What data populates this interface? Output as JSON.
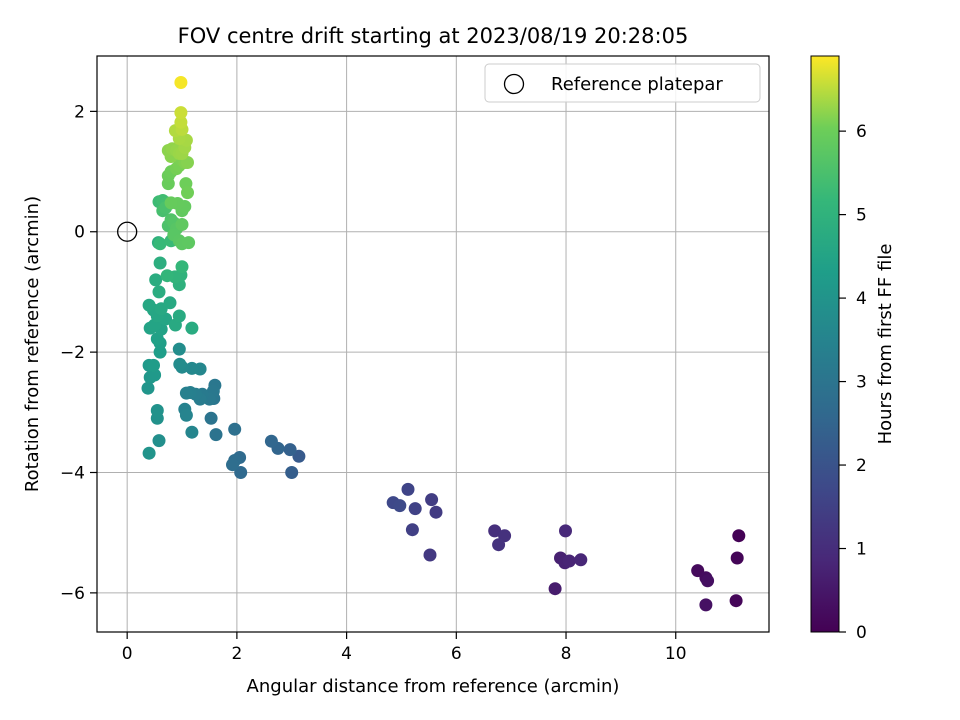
{
  "chart_data": {
    "type": "scatter",
    "title": "FOV centre drift starting at 2023/08/19 20:28:05",
    "xlabel": "Angular distance from reference (arcmin)",
    "ylabel": "Rotation from reference (arcmin)",
    "xlim": [
      -0.55,
      11.7
    ],
    "ylim": [
      -6.65,
      2.92
    ],
    "xticks": [
      0,
      2,
      4,
      6,
      8,
      10
    ],
    "yticks": [
      -6,
      -4,
      -2,
      0,
      2
    ],
    "grid": true,
    "legend": {
      "placement": "top-right",
      "label": "Reference platepar"
    },
    "reference_point": {
      "x": 0,
      "y": 0
    },
    "colorbar": {
      "label": "Hours from first FF file",
      "colormap": "viridis",
      "range": [
        0,
        6.9
      ],
      "ticks": [
        0,
        1,
        2,
        3,
        4,
        5,
        6
      ]
    },
    "series": [
      {
        "points": [
          {
            "x": 11.15,
            "y": -5.05,
            "c": 0.03
          },
          {
            "x": 11.12,
            "y": -5.42,
            "c": 0.08
          },
          {
            "x": 11.1,
            "y": -6.13,
            "c": 0.12
          },
          {
            "x": 10.4,
            "y": -5.63,
            "c": 0.2
          },
          {
            "x": 10.55,
            "y": -5.75,
            "c": 0.25
          },
          {
            "x": 10.58,
            "y": -5.8,
            "c": 0.3
          },
          {
            "x": 10.55,
            "y": -6.2,
            "c": 0.35
          },
          {
            "x": 7.8,
            "y": -5.93,
            "c": 0.6
          },
          {
            "x": 7.9,
            "y": -5.42,
            "c": 0.7
          },
          {
            "x": 7.98,
            "y": -5.5,
            "c": 0.75
          },
          {
            "x": 8.06,
            "y": -5.47,
            "c": 0.8
          },
          {
            "x": 8.27,
            "y": -5.45,
            "c": 0.85
          },
          {
            "x": 7.99,
            "y": -4.97,
            "c": 0.9
          },
          {
            "x": 6.7,
            "y": -4.97,
            "c": 1.05
          },
          {
            "x": 6.88,
            "y": -5.05,
            "c": 1.1
          },
          {
            "x": 6.77,
            "y": -5.2,
            "c": 1.15
          },
          {
            "x": 5.52,
            "y": -5.37,
            "c": 1.3
          },
          {
            "x": 5.63,
            "y": -4.66,
            "c": 1.35
          },
          {
            "x": 5.55,
            "y": -4.45,
            "c": 1.4
          },
          {
            "x": 5.2,
            "y": -4.95,
            "c": 1.5
          },
          {
            "x": 5.25,
            "y": -4.6,
            "c": 1.55
          },
          {
            "x": 5.12,
            "y": -4.28,
            "c": 1.6
          },
          {
            "x": 4.85,
            "y": -4.5,
            "c": 1.7
          },
          {
            "x": 4.97,
            "y": -4.55,
            "c": 1.75
          },
          {
            "x": 3.13,
            "y": -3.73,
            "c": 2.2
          },
          {
            "x": 3.0,
            "y": -4.0,
            "c": 2.3
          },
          {
            "x": 2.97,
            "y": -3.62,
            "c": 2.4
          },
          {
            "x": 2.75,
            "y": -3.6,
            "c": 2.5
          },
          {
            "x": 2.63,
            "y": -3.48,
            "c": 2.55
          },
          {
            "x": 2.07,
            "y": -4.0,
            "c": 2.65
          },
          {
            "x": 2.05,
            "y": -3.75,
            "c": 2.7
          },
          {
            "x": 1.96,
            "y": -3.8,
            "c": 2.75
          },
          {
            "x": 1.92,
            "y": -3.87,
            "c": 2.78
          },
          {
            "x": 1.96,
            "y": -3.28,
            "c": 2.85
          },
          {
            "x": 1.62,
            "y": -3.37,
            "c": 2.95
          },
          {
            "x": 1.53,
            "y": -3.1,
            "c": 3.0
          },
          {
            "x": 1.58,
            "y": -2.77,
            "c": 3.05
          },
          {
            "x": 1.6,
            "y": -2.55,
            "c": 3.1
          },
          {
            "x": 1.57,
            "y": -2.65,
            "c": 3.12
          },
          {
            "x": 1.5,
            "y": -2.78,
            "c": 3.15
          },
          {
            "x": 1.37,
            "y": -2.7,
            "c": 3.2
          },
          {
            "x": 1.33,
            "y": -2.78,
            "c": 3.25
          },
          {
            "x": 1.25,
            "y": -2.7,
            "c": 3.3
          },
          {
            "x": 1.15,
            "y": -2.67,
            "c": 3.35
          },
          {
            "x": 1.08,
            "y": -2.68,
            "c": 3.4
          },
          {
            "x": 1.05,
            "y": -2.95,
            "c": 3.45
          },
          {
            "x": 1.08,
            "y": -3.05,
            "c": 3.5
          },
          {
            "x": 1.18,
            "y": -3.33,
            "c": 3.55
          },
          {
            "x": 1.33,
            "y": -2.28,
            "c": 3.6
          },
          {
            "x": 1.18,
            "y": -2.27,
            "c": 3.65
          },
          {
            "x": 1.0,
            "y": -2.25,
            "c": 3.7
          },
          {
            "x": 0.96,
            "y": -2.2,
            "c": 3.75
          },
          {
            "x": 0.95,
            "y": -1.95,
            "c": 3.8
          },
          {
            "x": 0.58,
            "y": -3.47,
            "c": 3.85
          },
          {
            "x": 0.55,
            "y": -3.1,
            "c": 3.9
          },
          {
            "x": 0.55,
            "y": -2.97,
            "c": 3.95
          },
          {
            "x": 0.4,
            "y": -3.68,
            "c": 4.0
          },
          {
            "x": 0.38,
            "y": -2.6,
            "c": 4.05
          },
          {
            "x": 0.42,
            "y": -2.42,
            "c": 4.1
          },
          {
            "x": 0.5,
            "y": -2.38,
            "c": 4.15
          },
          {
            "x": 0.4,
            "y": -2.22,
            "c": 4.2
          },
          {
            "x": 0.48,
            "y": -2.22,
            "c": 4.25
          },
          {
            "x": 0.6,
            "y": -2.0,
            "c": 4.3
          },
          {
            "x": 0.6,
            "y": -1.85,
            "c": 4.35
          },
          {
            "x": 0.55,
            "y": -1.78,
            "c": 4.4
          },
          {
            "x": 0.62,
            "y": -1.62,
            "c": 4.45
          },
          {
            "x": 0.42,
            "y": -1.6,
            "c": 4.5
          },
          {
            "x": 0.5,
            "y": -1.55,
            "c": 4.52
          },
          {
            "x": 0.7,
            "y": -1.45,
            "c": 4.55
          },
          {
            "x": 0.55,
            "y": -1.4,
            "c": 4.58
          },
          {
            "x": 0.48,
            "y": -1.3,
            "c": 4.6
          },
          {
            "x": 0.4,
            "y": -1.22,
            "c": 4.62
          },
          {
            "x": 0.62,
            "y": -1.28,
            "c": 4.65
          },
          {
            "x": 0.78,
            "y": -1.18,
            "c": 4.68
          },
          {
            "x": 0.88,
            "y": -1.55,
            "c": 4.7
          },
          {
            "x": 0.95,
            "y": -1.4,
            "c": 4.72
          },
          {
            "x": 1.18,
            "y": -1.6,
            "c": 4.75
          },
          {
            "x": 0.58,
            "y": -1.0,
            "c": 4.78
          },
          {
            "x": 0.52,
            "y": -0.8,
            "c": 4.8
          },
          {
            "x": 0.6,
            "y": -0.52,
            "c": 4.85
          },
          {
            "x": 0.57,
            "y": -0.18,
            "c": 4.9
          },
          {
            "x": 0.95,
            "y": -0.88,
            "c": 4.95
          },
          {
            "x": 0.98,
            "y": -0.72,
            "c": 5.0
          },
          {
            "x": 0.87,
            "y": -0.75,
            "c": 5.05
          },
          {
            "x": 0.73,
            "y": -0.73,
            "c": 5.1
          },
          {
            "x": 1.0,
            "y": -0.58,
            "c": 5.15
          },
          {
            "x": 0.6,
            "y": -0.2,
            "c": 5.2
          },
          {
            "x": 0.8,
            "y": -0.15,
            "c": 5.25
          },
          {
            "x": 0.58,
            "y": 0.5,
            "c": 5.3
          },
          {
            "x": 0.65,
            "y": 0.52,
            "c": 5.35
          },
          {
            "x": 0.72,
            "y": 0.48,
            "c": 5.4
          },
          {
            "x": 0.65,
            "y": 0.35,
            "c": 5.45
          },
          {
            "x": 0.7,
            "y": 0.4,
            "c": 5.5
          },
          {
            "x": 0.75,
            "y": 0.1,
            "c": 5.55
          },
          {
            "x": 0.8,
            "y": 0.2,
            "c": 5.6
          },
          {
            "x": 0.85,
            "y": 0.15,
            "c": 5.65
          },
          {
            "x": 0.9,
            "y": 0.05,
            "c": 5.7
          },
          {
            "x": 0.85,
            "y": -0.05,
            "c": 5.72
          },
          {
            "x": 0.95,
            "y": -0.15,
            "c": 5.75
          },
          {
            "x": 1.0,
            "y": -0.2,
            "c": 5.78
          },
          {
            "x": 1.12,
            "y": -0.18,
            "c": 5.8
          },
          {
            "x": 1.0,
            "y": 0.12,
            "c": 5.82
          },
          {
            "x": 1.0,
            "y": 0.35,
            "c": 5.85
          },
          {
            "x": 1.05,
            "y": 0.42,
            "c": 5.88
          },
          {
            "x": 0.92,
            "y": 0.47,
            "c": 5.9
          },
          {
            "x": 0.8,
            "y": 0.48,
            "c": 5.92
          },
          {
            "x": 0.75,
            "y": 0.8,
            "c": 5.95
          },
          {
            "x": 0.75,
            "y": 0.93,
            "c": 5.98
          },
          {
            "x": 0.8,
            "y": 1.0,
            "c": 6.0
          },
          {
            "x": 1.07,
            "y": 0.8,
            "c": 6.02
          },
          {
            "x": 1.1,
            "y": 0.65,
            "c": 6.05
          },
          {
            "x": 0.9,
            "y": 1.05,
            "c": 6.08
          },
          {
            "x": 0.95,
            "y": 1.1,
            "c": 6.1
          },
          {
            "x": 0.98,
            "y": 1.2,
            "c": 6.12
          },
          {
            "x": 1.05,
            "y": 1.15,
            "c": 6.15
          },
          {
            "x": 1.1,
            "y": 1.15,
            "c": 6.18
          },
          {
            "x": 0.8,
            "y": 1.25,
            "c": 6.2
          },
          {
            "x": 0.75,
            "y": 1.35,
            "c": 6.22
          },
          {
            "x": 0.82,
            "y": 1.38,
            "c": 6.25
          },
          {
            "x": 0.9,
            "y": 1.35,
            "c": 6.28
          },
          {
            "x": 0.95,
            "y": 1.3,
            "c": 6.3
          },
          {
            "x": 1.0,
            "y": 1.3,
            "c": 6.32
          },
          {
            "x": 1.05,
            "y": 1.4,
            "c": 6.35
          },
          {
            "x": 1.08,
            "y": 1.52,
            "c": 6.38
          },
          {
            "x": 0.95,
            "y": 1.55,
            "c": 6.4
          },
          {
            "x": 0.88,
            "y": 1.68,
            "c": 6.45
          },
          {
            "x": 1.0,
            "y": 1.7,
            "c": 6.5
          },
          {
            "x": 0.98,
            "y": 1.82,
            "c": 6.55
          },
          {
            "x": 0.98,
            "y": 1.98,
            "c": 6.6
          },
          {
            "x": 0.98,
            "y": 2.48,
            "c": 6.85
          }
        ]
      }
    ]
  }
}
